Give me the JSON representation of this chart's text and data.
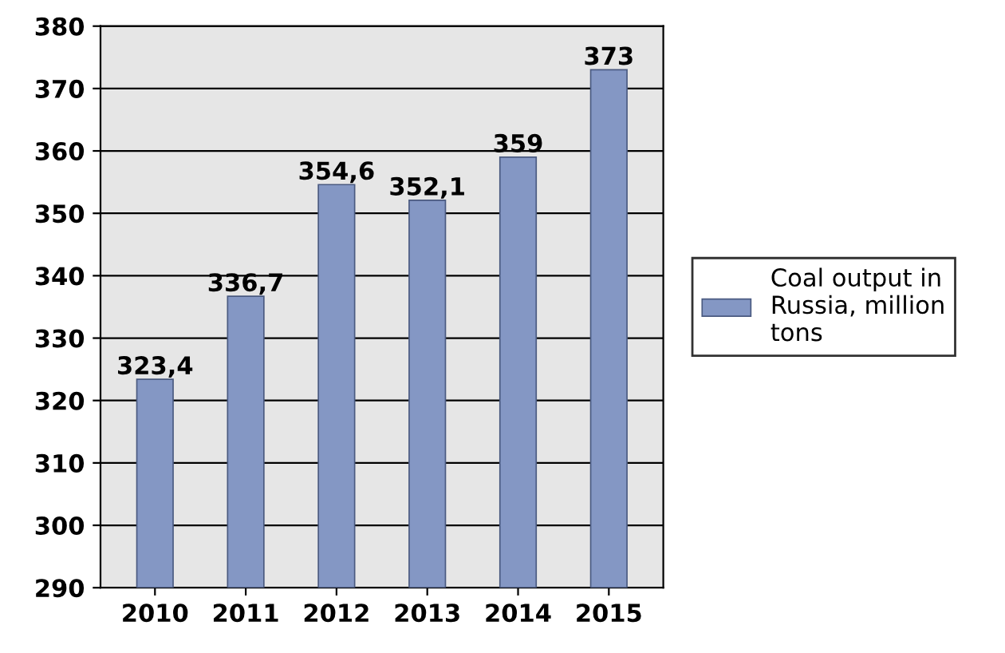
{
  "chart_data": {
    "type": "bar",
    "categories": [
      "2010",
      "2011",
      "2012",
      "2013",
      "2014",
      "2015"
    ],
    "series": [
      {
        "name": "Coal output in\nRussia, million\ntons",
        "color": "#8497c4",
        "values": [
          323.4,
          336.7,
          354.6,
          352.1,
          359,
          373
        ],
        "value_labels": [
          "323,4",
          "336,7",
          "354,6",
          "352,1",
          "359",
          "373"
        ]
      }
    ],
    "ylim": [
      290,
      380
    ],
    "yticks": [
      290,
      300,
      310,
      320,
      330,
      340,
      350,
      360,
      370,
      380
    ],
    "grid": "y",
    "legend": "right"
  }
}
